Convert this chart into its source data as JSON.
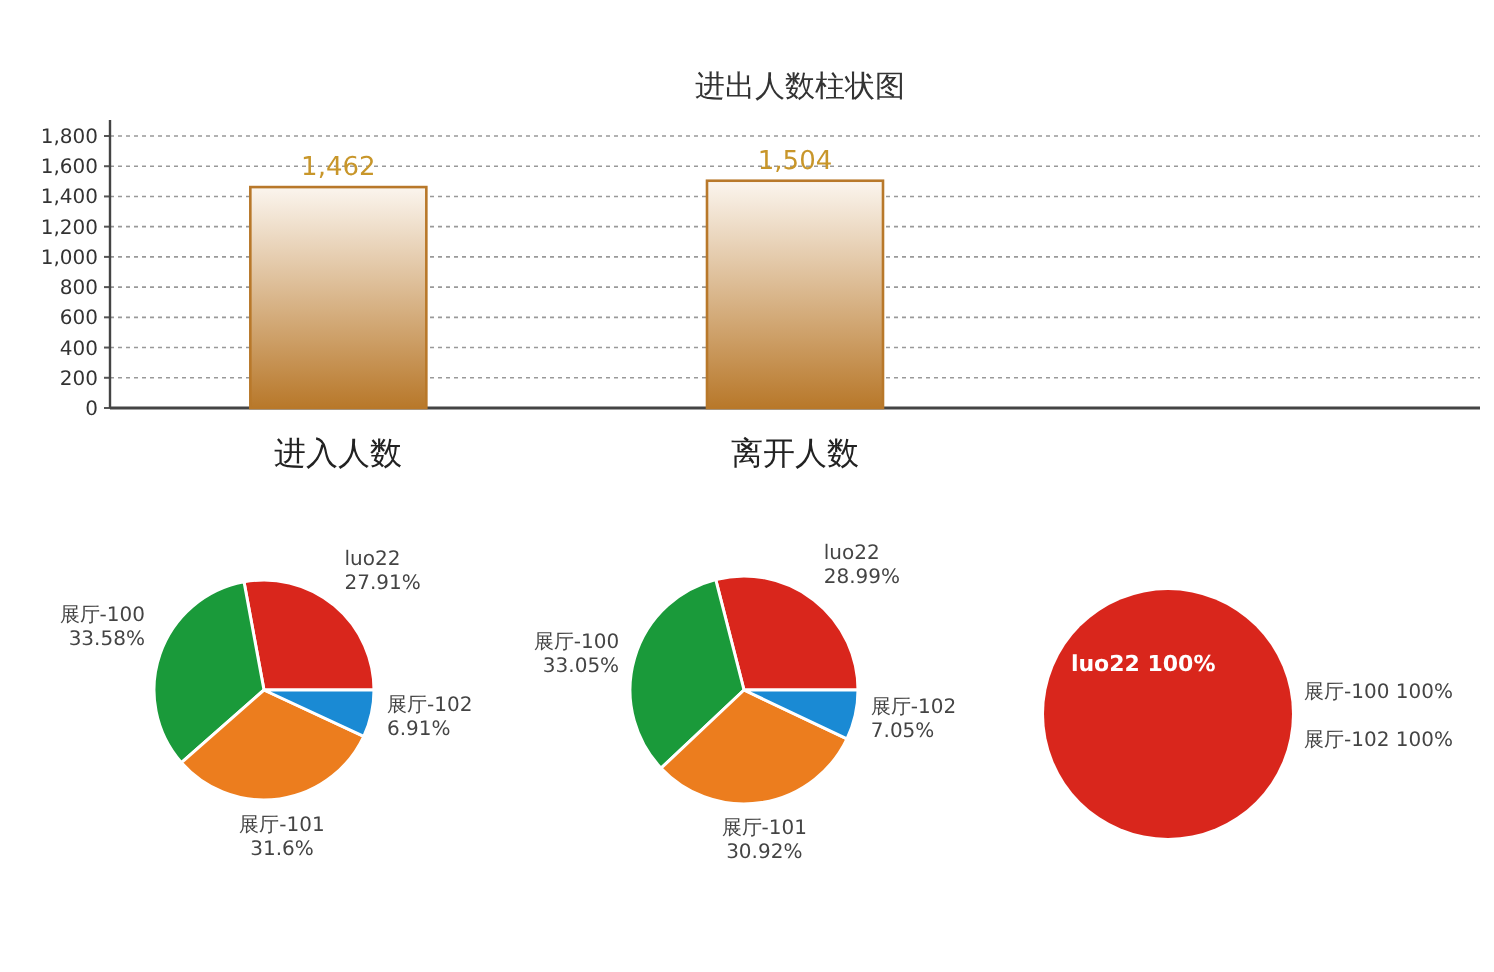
{
  "chart_data": [
    {
      "type": "bar",
      "title": "进出人数柱状图",
      "categories": [
        "进入人数",
        "离开人数",
        null
      ],
      "values": [
        1462,
        1504,
        null
      ],
      "value_labels": [
        "1,462",
        "1,504",
        null
      ],
      "color": "#b8782a",
      "ylim": [
        0,
        1800
      ],
      "yticks": [
        0,
        200,
        400,
        600,
        800,
        {
          "value": 1000,
          "label": "1,000"
        },
        {
          "value": 1200,
          "label": "1,200"
        },
        {
          "value": 1400,
          "label": "1,400"
        },
        {
          "value": 1600,
          "label": "1,600"
        },
        {
          "value": 1800,
          "label": "1,800"
        }
      ],
      "grid": "y"
    },
    {
      "type": "pie",
      "categories": [
        "luo22",
        "展厅-100",
        "展厅-101",
        "展厅-102"
      ],
      "values": [
        27.91,
        33.58,
        31.6,
        6.91
      ],
      "value_labels": [
        "27.91%",
        "33.58%",
        "31.6%",
        "6.91%"
      ],
      "colors": [
        "#d9261c",
        "#1a9a3a",
        "#ec7d1e",
        "#1a8ad4"
      ]
    },
    {
      "type": "pie",
      "categories": [
        "luo22",
        "展厅-100",
        "展厅-101",
        "展厅-102"
      ],
      "values": [
        28.99,
        33.05,
        30.92,
        7.05
      ],
      "value_labels": [
        "28.99%",
        "33.05%",
        "30.92%",
        "7.05%"
      ],
      "colors": [
        "#d9261c",
        "#1a9a3a",
        "#ec7d1e",
        "#1a8ad4"
      ]
    },
    {
      "type": "pie",
      "categories": [
        "luo22"
      ],
      "values": [
        100
      ],
      "value_labels": [
        "100%"
      ],
      "colors": [
        "#d9261c"
      ],
      "annotations": [
        "展厅-100 100%",
        "展厅-102 100%"
      ]
    }
  ]
}
